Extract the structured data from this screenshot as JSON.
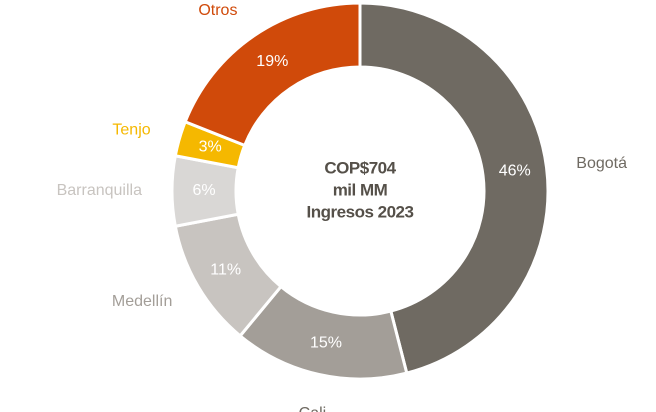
{
  "chart_data": {
    "type": "donut",
    "categories": [
      "Bogotá",
      "Cali",
      "Medellín",
      "Barranquilla",
      "Tenjo",
      "Otros"
    ],
    "values": [
      46,
      15,
      11,
      6,
      3,
      19
    ],
    "value_labels": [
      "46%",
      "15%",
      "11%",
      "6%",
      "3%",
      "19%"
    ],
    "colors": [
      "#6f6a62",
      "#a39e98",
      "#c8c4c0",
      "#d9d7d5",
      "#f5b800",
      "#d04a0a"
    ],
    "label_colors": [
      "#6f6a62",
      "#6f6a62",
      "#a39e98",
      "#c8c4c0",
      "#f5b800",
      "#d04a0a"
    ],
    "center_text": [
      "COP$704",
      "mil MM",
      "Ingresos 2023"
    ]
  }
}
